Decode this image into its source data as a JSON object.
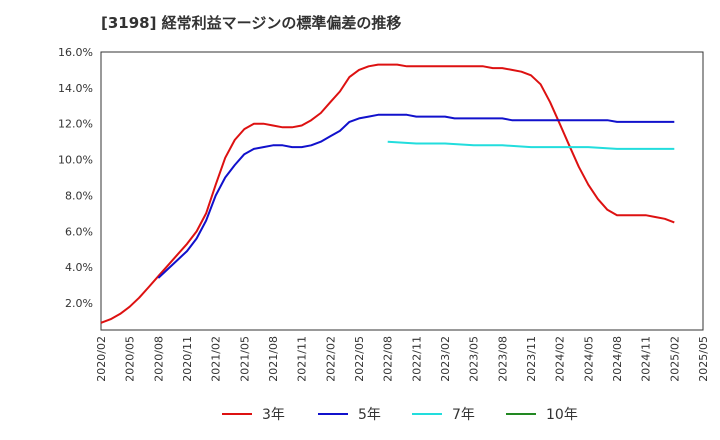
{
  "title": "[3198]  経常利益マージンの標準偏差の推移",
  "chart_data": {
    "type": "line",
    "title": "[3198]  経常利益マージンの標準偏差の推移",
    "xlabel": "",
    "ylabel": "",
    "x_ticks": [
      "2020/02",
      "2020/05",
      "2020/08",
      "2020/11",
      "2021/02",
      "2021/05",
      "2021/08",
      "2021/11",
      "2022/02",
      "2022/05",
      "2022/08",
      "2022/11",
      "2023/02",
      "2023/05",
      "2023/08",
      "2023/11",
      "2024/02",
      "2024/05",
      "2024/08",
      "2024/11",
      "2025/02",
      "2025/05"
    ],
    "y_ticks": [
      "2.0%",
      "4.0%",
      "6.0%",
      "8.0%",
      "10.0%",
      "12.0%",
      "14.0%",
      "16.0%"
    ],
    "ylim": [
      0.5,
      16.0
    ],
    "grid": true,
    "legend_position": "bottom",
    "series": [
      {
        "name": "3年",
        "color": "#dd1111",
        "values": [
          [
            "2020/02",
            0.9
          ],
          [
            "2020/03",
            1.1
          ],
          [
            "2020/04",
            1.4
          ],
          [
            "2020/05",
            1.8
          ],
          [
            "2020/06",
            2.3
          ],
          [
            "2020/07",
            2.9
          ],
          [
            "2020/08",
            3.5
          ],
          [
            "2020/09",
            4.1
          ],
          [
            "2020/10",
            4.7
          ],
          [
            "2020/11",
            5.3
          ],
          [
            "2020/12",
            6.0
          ],
          [
            "2021/01",
            7.0
          ],
          [
            "2021/02",
            8.6
          ],
          [
            "2021/03",
            10.1
          ],
          [
            "2021/04",
            11.1
          ],
          [
            "2021/05",
            11.7
          ],
          [
            "2021/06",
            12.0
          ],
          [
            "2021/07",
            12.0
          ],
          [
            "2021/08",
            11.9
          ],
          [
            "2021/09",
            11.8
          ],
          [
            "2021/10",
            11.8
          ],
          [
            "2021/11",
            11.9
          ],
          [
            "2021/12",
            12.2
          ],
          [
            "2022/01",
            12.6
          ],
          [
            "2022/02",
            13.2
          ],
          [
            "2022/03",
            13.8
          ],
          [
            "2022/04",
            14.6
          ],
          [
            "2022/05",
            15.0
          ],
          [
            "2022/06",
            15.2
          ],
          [
            "2022/07",
            15.3
          ],
          [
            "2022/08",
            15.3
          ],
          [
            "2022/09",
            15.3
          ],
          [
            "2022/10",
            15.2
          ],
          [
            "2022/11",
            15.2
          ],
          [
            "2022/12",
            15.2
          ],
          [
            "2023/01",
            15.2
          ],
          [
            "2023/02",
            15.2
          ],
          [
            "2023/03",
            15.2
          ],
          [
            "2023/04",
            15.2
          ],
          [
            "2023/05",
            15.2
          ],
          [
            "2023/06",
            15.2
          ],
          [
            "2023/07",
            15.1
          ],
          [
            "2023/08",
            15.1
          ],
          [
            "2023/09",
            15.0
          ],
          [
            "2023/10",
            14.9
          ],
          [
            "2023/11",
            14.7
          ],
          [
            "2023/12",
            14.2
          ],
          [
            "2024/01",
            13.2
          ],
          [
            "2024/02",
            12.0
          ],
          [
            "2024/03",
            10.8
          ],
          [
            "2024/04",
            9.6
          ],
          [
            "2024/05",
            8.6
          ],
          [
            "2024/06",
            7.8
          ],
          [
            "2024/07",
            7.2
          ],
          [
            "2024/08",
            6.9
          ],
          [
            "2024/09",
            6.9
          ],
          [
            "2024/10",
            6.9
          ],
          [
            "2024/11",
            6.9
          ],
          [
            "2024/12",
            6.8
          ],
          [
            "2025/01",
            6.7
          ],
          [
            "2025/02",
            6.5
          ]
        ]
      },
      {
        "name": "5年",
        "color": "#1111cc",
        "values": [
          [
            "2020/08",
            3.4
          ],
          [
            "2020/09",
            3.9
          ],
          [
            "2020/10",
            4.4
          ],
          [
            "2020/11",
            4.9
          ],
          [
            "2020/12",
            5.6
          ],
          [
            "2021/01",
            6.6
          ],
          [
            "2021/02",
            8.0
          ],
          [
            "2021/03",
            9.0
          ],
          [
            "2021/04",
            9.7
          ],
          [
            "2021/05",
            10.3
          ],
          [
            "2021/06",
            10.6
          ],
          [
            "2021/07",
            10.7
          ],
          [
            "2021/08",
            10.8
          ],
          [
            "2021/09",
            10.8
          ],
          [
            "2021/10",
            10.7
          ],
          [
            "2021/11",
            10.7
          ],
          [
            "2021/12",
            10.8
          ],
          [
            "2022/01",
            11.0
          ],
          [
            "2022/02",
            11.3
          ],
          [
            "2022/03",
            11.6
          ],
          [
            "2022/04",
            12.1
          ],
          [
            "2022/05",
            12.3
          ],
          [
            "2022/06",
            12.4
          ],
          [
            "2022/07",
            12.5
          ],
          [
            "2022/08",
            12.5
          ],
          [
            "2022/09",
            12.5
          ],
          [
            "2022/10",
            12.5
          ],
          [
            "2022/11",
            12.4
          ],
          [
            "2022/12",
            12.4
          ],
          [
            "2023/01",
            12.4
          ],
          [
            "2023/02",
            12.4
          ],
          [
            "2023/03",
            12.3
          ],
          [
            "2023/04",
            12.3
          ],
          [
            "2023/05",
            12.3
          ],
          [
            "2023/06",
            12.3
          ],
          [
            "2023/07",
            12.3
          ],
          [
            "2023/08",
            12.3
          ],
          [
            "2023/09",
            12.2
          ],
          [
            "2023/10",
            12.2
          ],
          [
            "2023/11",
            12.2
          ],
          [
            "2023/12",
            12.2
          ],
          [
            "2024/01",
            12.2
          ],
          [
            "2024/02",
            12.2
          ],
          [
            "2024/03",
            12.2
          ],
          [
            "2024/04",
            12.2
          ],
          [
            "2024/05",
            12.2
          ],
          [
            "2024/06",
            12.2
          ],
          [
            "2024/07",
            12.2
          ],
          [
            "2024/08",
            12.1
          ],
          [
            "2024/09",
            12.1
          ],
          [
            "2024/10",
            12.1
          ],
          [
            "2024/11",
            12.1
          ],
          [
            "2024/12",
            12.1
          ],
          [
            "2025/01",
            12.1
          ],
          [
            "2025/02",
            12.1
          ]
        ]
      },
      {
        "name": "7年",
        "color": "#22dddd",
        "values": [
          [
            "2022/08",
            11.0
          ],
          [
            "2022/11",
            10.9
          ],
          [
            "2023/02",
            10.9
          ],
          [
            "2023/05",
            10.8
          ],
          [
            "2023/08",
            10.8
          ],
          [
            "2023/11",
            10.7
          ],
          [
            "2024/02",
            10.7
          ],
          [
            "2024/05",
            10.7
          ],
          [
            "2024/08",
            10.6
          ],
          [
            "2024/11",
            10.6
          ],
          [
            "2025/02",
            10.6
          ]
        ]
      },
      {
        "name": "10年",
        "color": "#228822",
        "values": []
      }
    ]
  }
}
